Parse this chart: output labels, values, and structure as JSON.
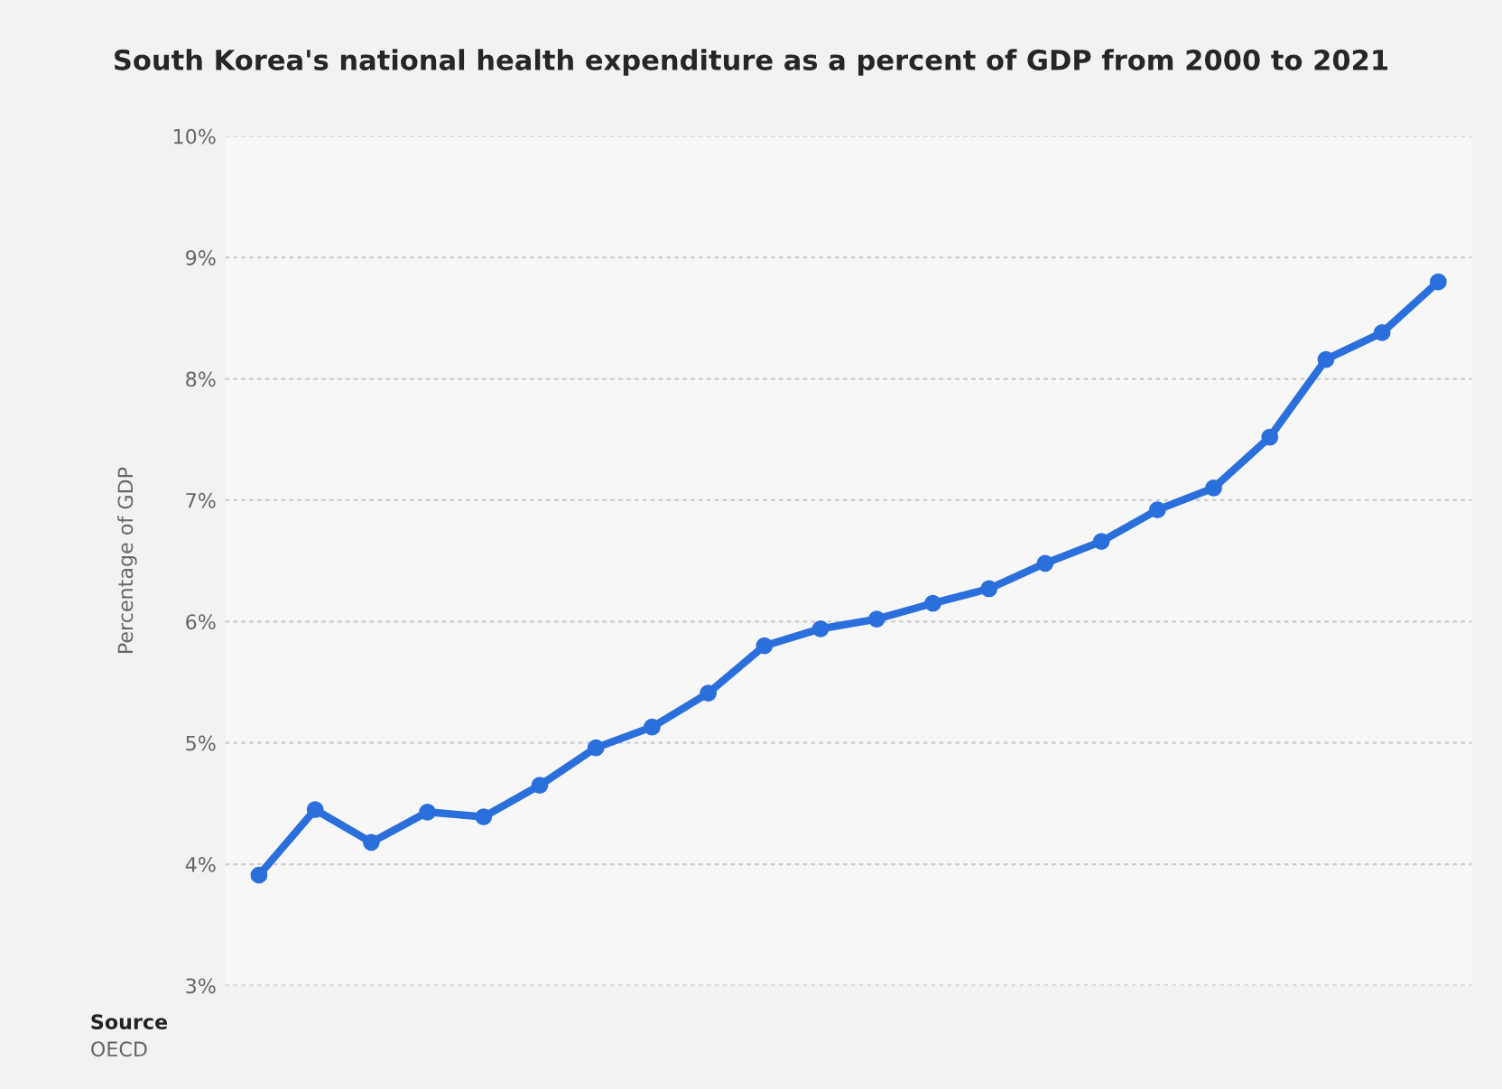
{
  "chart_data": {
    "type": "line",
    "title": "South Korea's national health expenditure as a percent of GDP from 2000 to 2021",
    "ylabel": "Percentage of GDP",
    "categories": [
      null,
      null,
      null,
      null,
      null,
      null,
      null,
      null,
      null,
      null,
      null,
      null,
      null,
      null,
      null,
      null,
      null,
      null,
      null,
      null,
      null,
      null
    ],
    "series": [
      {
        "color": "#2a6fdb",
        "values": [
          3.91,
          4.45,
          4.18,
          4.43,
          4.39,
          4.65,
          4.96,
          5.13,
          5.41,
          5.8,
          5.94,
          6.02,
          6.15,
          6.27,
          6.48,
          6.66,
          6.92,
          7.1,
          7.52,
          8.16,
          8.38,
          8.8
        ]
      }
    ],
    "ylim": [
      3,
      10
    ],
    "yticks": [
      {
        "value": 3,
        "label": "3%"
      },
      {
        "value": 4,
        "label": "4%"
      },
      {
        "value": 5,
        "label": "5%"
      },
      {
        "value": 6,
        "label": "6%"
      },
      {
        "value": 7,
        "label": "7%"
      },
      {
        "value": 8,
        "label": "8%"
      },
      {
        "value": 9,
        "label": "9%"
      },
      {
        "value": 10,
        "label": "10%"
      }
    ],
    "grid": "y",
    "marker": "circle",
    "line_style": "solid",
    "tick_labels": "y",
    "annotations": [
      "Source",
      "OECD"
    ]
  }
}
